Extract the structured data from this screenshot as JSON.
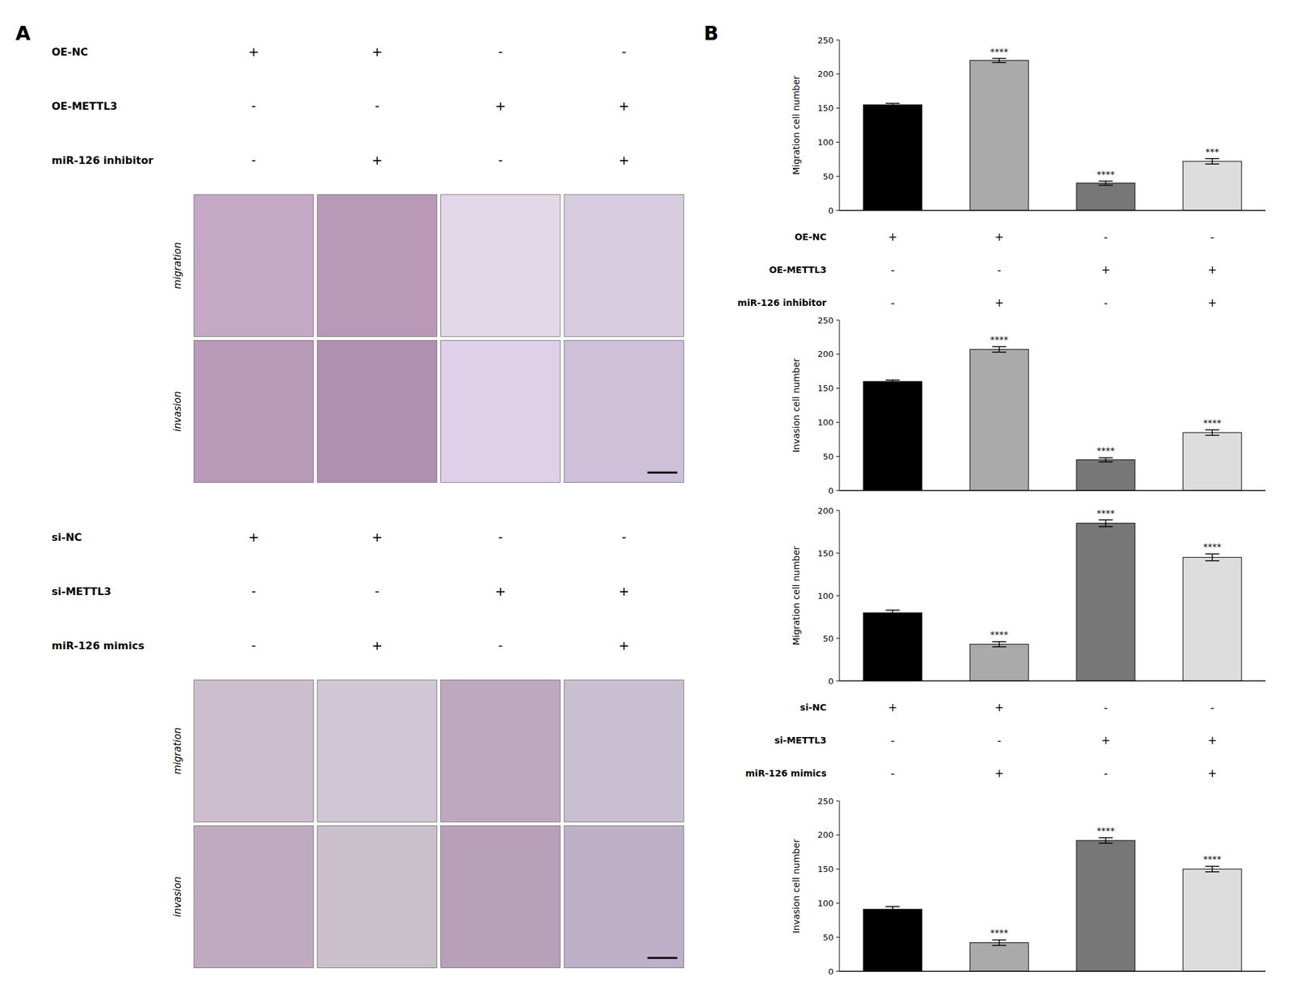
{
  "panel_labels": [
    "A",
    "B"
  ],
  "image_panels": [
    {
      "row_labels": [
        "OE-NC",
        "OE-METTL3",
        "miR-126 inhibitor"
      ],
      "signs": [
        [
          "+",
          "+",
          "-",
          "-"
        ],
        [
          "-",
          "-",
          "+",
          "+"
        ],
        [
          "-",
          "+",
          "-",
          "+"
        ]
      ],
      "image_rows": [
        "migration",
        "invasion"
      ]
    },
    {
      "row_labels": [
        "si-NC",
        "si-METTL3",
        "miR-126 mimics"
      ],
      "signs": [
        [
          "+",
          "+",
          "-",
          "-"
        ],
        [
          "-",
          "-",
          "+",
          "+"
        ],
        [
          "-",
          "+",
          "-",
          "+"
        ]
      ],
      "image_rows": [
        "migration",
        "invasion"
      ]
    }
  ],
  "chart_data": [
    {
      "type": "bar",
      "ylabel": "Migration cell number",
      "categories": [
        null,
        null,
        null,
        null
      ],
      "values": [
        155,
        220,
        40,
        72
      ],
      "errors": [
        2,
        3,
        3,
        4
      ],
      "colors": [
        "#000000",
        "#aaaaaa",
        "#777777",
        "#dddddd"
      ],
      "ylim": [
        0,
        250
      ],
      "yticks": [
        0,
        50,
        100,
        150,
        200,
        250
      ],
      "annotations": [
        null,
        "****",
        "****",
        "***"
      ],
      "tick_labels": "y",
      "grid": false,
      "table_rows": [
        {
          "name": "OE-NC",
          "signs": [
            "+",
            "+",
            "-",
            "-"
          ]
        },
        {
          "name": "OE-METTL3",
          "signs": [
            "-",
            "-",
            "+",
            "+"
          ]
        },
        {
          "name": "miR-126 inhibitor",
          "signs": [
            "-",
            "+",
            "-",
            "+"
          ]
        }
      ]
    },
    {
      "type": "bar",
      "ylabel": "Invasion cell number",
      "categories": [
        null,
        null,
        null,
        null
      ],
      "values": [
        160,
        207,
        45,
        85
      ],
      "errors": [
        2,
        4,
        3,
        4
      ],
      "colors": [
        "#000000",
        "#aaaaaa",
        "#777777",
        "#dddddd"
      ],
      "ylim": [
        0,
        250
      ],
      "yticks": [
        0,
        50,
        100,
        150,
        200,
        250
      ],
      "annotations": [
        null,
        "****",
        "****",
        "****"
      ],
      "tick_labels": "y",
      "grid": false
    },
    {
      "type": "bar",
      "ylabel": "Migration cell number",
      "categories": [
        null,
        null,
        null,
        null
      ],
      "values": [
        80,
        43,
        185,
        145
      ],
      "errors": [
        3,
        3,
        4,
        4
      ],
      "colors": [
        "#000000",
        "#aaaaaa",
        "#777777",
        "#dddddd"
      ],
      "ylim": [
        0,
        200
      ],
      "yticks": [
        0,
        50,
        100,
        150,
        200
      ],
      "annotations": [
        null,
        "****",
        "****",
        "****"
      ],
      "tick_labels": "y",
      "grid": false,
      "table_rows": [
        {
          "name": "si-NC",
          "signs": [
            "+",
            "+",
            "-",
            "-"
          ]
        },
        {
          "name": "si-METTL3",
          "signs": [
            "-",
            "-",
            "+",
            "+"
          ]
        },
        {
          "name": "miR-126 mimics",
          "signs": [
            "-",
            "+",
            "-",
            "+"
          ]
        }
      ]
    },
    {
      "type": "bar",
      "ylabel": "Invasion cell number",
      "categories": [
        null,
        null,
        null,
        null
      ],
      "values": [
        91,
        42,
        192,
        150
      ],
      "errors": [
        4,
        4,
        4,
        4
      ],
      "colors": [
        "#000000",
        "#aaaaaa",
        "#777777",
        "#dddddd"
      ],
      "ylim": [
        0,
        250
      ],
      "yticks": [
        0,
        50,
        100,
        150,
        200,
        250
      ],
      "annotations": [
        null,
        "****",
        "****",
        "****"
      ],
      "tick_labels": "y",
      "grid": false
    }
  ]
}
